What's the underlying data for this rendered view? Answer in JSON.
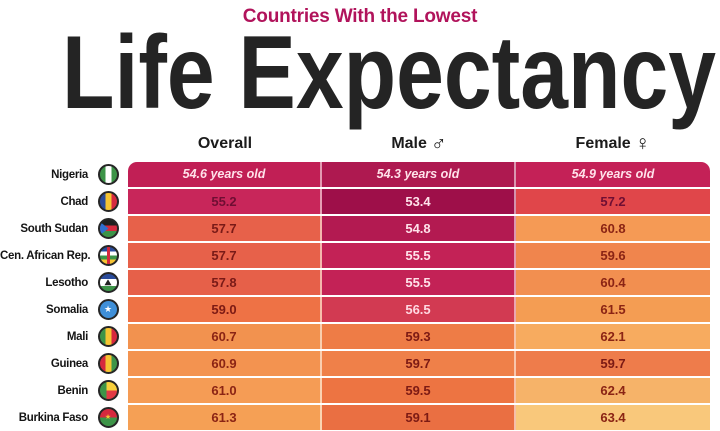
{
  "header": {
    "kicker": "Countries With the Lowest",
    "kicker_color": "#b1135b",
    "title": "Life Expectancy",
    "title_color": "#242424"
  },
  "table": {
    "columns": [
      {
        "key": "overall",
        "label": "Overall",
        "symbol": ""
      },
      {
        "key": "male",
        "label": "Male",
        "symbol": "♂"
      },
      {
        "key": "female",
        "label": "Female",
        "symbol": "♀"
      }
    ],
    "rows": [
      {
        "country": "Nigeria",
        "flag": "nigeria",
        "cells": [
          {
            "text": "54.6 years old",
            "bg": "#c11f55",
            "fg": "#ffe2ea"
          },
          {
            "text": "54.3 years old",
            "bg": "#ae1950",
            "fg": "#ffe2ea"
          },
          {
            "text": "54.9 years old",
            "bg": "#c42157",
            "fg": "#ffe2ea"
          }
        ]
      },
      {
        "country": "Chad",
        "flag": "chad",
        "cells": [
          {
            "text": "55.2",
            "bg": "#c8265a",
            "fg": "#6f0e33"
          },
          {
            "text": "53.4",
            "bg": "#9e0f49",
            "fg": "#ffe2ea"
          },
          {
            "text": "57.2",
            "bg": "#e0464a",
            "fg": "#6f0e33"
          }
        ]
      },
      {
        "country": "South Sudan",
        "flag": "south-sudan",
        "cells": [
          {
            "text": "57.7",
            "bg": "#e7614a",
            "fg": "#791a17"
          },
          {
            "text": "54.8",
            "bg": "#b31a51",
            "fg": "#ffe2ea"
          },
          {
            "text": "60.8",
            "bg": "#f59a55",
            "fg": "#8b2414"
          }
        ]
      },
      {
        "country": "Cen. African Rep.",
        "flag": "car",
        "cells": [
          {
            "text": "57.7",
            "bg": "#e7614a",
            "fg": "#791a17"
          },
          {
            "text": "55.5",
            "bg": "#c32256",
            "fg": "#ffe2ea"
          },
          {
            "text": "59.6",
            "bg": "#f0854d",
            "fg": "#8b2414"
          }
        ]
      },
      {
        "country": "Lesotho",
        "flag": "lesotho",
        "cells": [
          {
            "text": "57.8",
            "bg": "#e66049",
            "fg": "#791a17"
          },
          {
            "text": "55.5",
            "bg": "#c32256",
            "fg": "#ffe2ea"
          },
          {
            "text": "60.4",
            "bg": "#f28f50",
            "fg": "#8b2414"
          }
        ]
      },
      {
        "country": "Somalia",
        "flag": "somalia",
        "cells": [
          {
            "text": "59.0",
            "bg": "#ee7245",
            "fg": "#7c1a14"
          },
          {
            "text": "56.5",
            "bg": "#d23a52",
            "fg": "#ffd9e2"
          },
          {
            "text": "61.5",
            "bg": "#f49d53",
            "fg": "#8b2414"
          }
        ]
      },
      {
        "country": "Mali",
        "flag": "mali",
        "cells": [
          {
            "text": "60.7",
            "bg": "#f2924f",
            "fg": "#8b2414"
          },
          {
            "text": "59.3",
            "bg": "#ee7c46",
            "fg": "#7c1a14"
          },
          {
            "text": "62.1",
            "bg": "#f7ab5f",
            "fg": "#8b2414"
          }
        ]
      },
      {
        "country": "Guinea",
        "flag": "guinea",
        "cells": [
          {
            "text": "60.9",
            "bg": "#f39350",
            "fg": "#8b2414"
          },
          {
            "text": "59.7",
            "bg": "#ef8049",
            "fg": "#7c1a14"
          },
          {
            "text": "59.7",
            "bg": "#ee7c4b",
            "fg": "#7c1a14"
          }
        ]
      },
      {
        "country": "Benin",
        "flag": "benin",
        "cells": [
          {
            "text": "61.0",
            "bg": "#f59c55",
            "fg": "#8b2414"
          },
          {
            "text": "59.5",
            "bg": "#ed7442",
            "fg": "#7c1a14"
          },
          {
            "text": "62.4",
            "bg": "#f6b369",
            "fg": "#8b2414"
          }
        ]
      },
      {
        "country": "Burkina Faso",
        "flag": "burkina",
        "cells": [
          {
            "text": "61.3",
            "bg": "#f5a055",
            "fg": "#8b2414"
          },
          {
            "text": "59.1",
            "bg": "#ea6f42",
            "fg": "#7c1a14"
          },
          {
            "text": "63.4",
            "bg": "#f9c87b",
            "fg": "#8b2414"
          }
        ]
      }
    ]
  },
  "chart_data": {
    "type": "table",
    "title": "Countries With the Lowest Life Expectancy",
    "columns": [
      "Overall",
      "Male",
      "Female"
    ],
    "units": "years old",
    "rows": [
      {
        "country": "Nigeria",
        "overall": 54.6,
        "male": 54.3,
        "female": 54.9
      },
      {
        "country": "Chad",
        "overall": 55.2,
        "male": 53.4,
        "female": 57.2
      },
      {
        "country": "South Sudan",
        "overall": 57.7,
        "male": 54.8,
        "female": 60.8
      },
      {
        "country": "Cen. African Rep.",
        "overall": 57.7,
        "male": 55.5,
        "female": 59.6
      },
      {
        "country": "Lesotho",
        "overall": 57.8,
        "male": 55.5,
        "female": 60.4
      },
      {
        "country": "Somalia",
        "overall": 59.0,
        "male": 56.5,
        "female": 61.5
      },
      {
        "country": "Mali",
        "overall": 60.7,
        "male": 59.3,
        "female": 62.1
      },
      {
        "country": "Guinea",
        "overall": 60.9,
        "male": 59.7,
        "female": 59.7
      },
      {
        "country": "Benin",
        "overall": 61.0,
        "male": 59.5,
        "female": 62.4
      },
      {
        "country": "Burkina Faso",
        "overall": 61.3,
        "male": 59.1,
        "female": 63.4
      }
    ],
    "color_scale": {
      "low": "#9e0f49",
      "mid": "#ee7245",
      "high": "#f9c87b",
      "note": "darker crimson = lower life expectancy, lighter orange = higher"
    }
  }
}
